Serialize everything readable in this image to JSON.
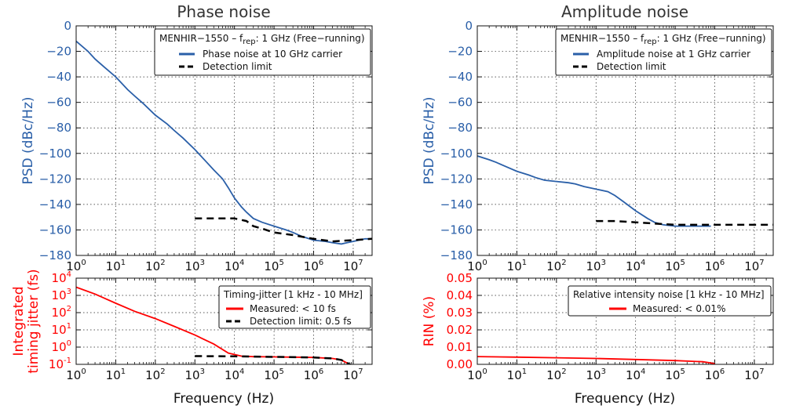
{
  "titles": {
    "left": "Phase noise",
    "right": "Amplitude noise"
  },
  "xlabel": "Frequency (Hz)",
  "colors": {
    "blue": "#2a5fa8",
    "red": "#ff0000",
    "black": "#000000",
    "text": "#111111"
  },
  "legends": {
    "phase": {
      "title_pre": "MENHIR−1550 – f",
      "title_sub": "rep",
      "title_post": ": 1 GHz (Free−running)",
      "item1": "Phase noise at 10 GHz carrier",
      "item2": "Detection limit"
    },
    "amp": {
      "title_pre": "MENHIR−1550 – f",
      "title_sub": "rep",
      "title_post": ": 1 GHz (Free−running)",
      "item1": "Amplitude noise at 1 GHz carrier",
      "item2": "Detection limit"
    },
    "jitter": {
      "title": "Timing-jitter [1 kHz - 10 MHz]",
      "item1": "Measured: < 10 fs",
      "item2": "Detection limit: 0.5 fs"
    },
    "rin": {
      "title": "Relative intensity noise [1 kHz - 10 MHz]",
      "item1": "Measured: < 0.01%"
    }
  },
  "chart_data": [
    {
      "id": "phase",
      "type": "line",
      "ylabel": "PSD (dBc/Hz)",
      "xscale": "log",
      "xlim": [
        1,
        30000000
      ],
      "ylim": [
        -180,
        0
      ],
      "yticks": [
        "0",
        "-20",
        "-40",
        "-60",
        "-80",
        "-100",
        "-120",
        "-140",
        "-160",
        "-180"
      ],
      "yticks_negative_glyph": [
        "0",
        "−20",
        "−40",
        "−60",
        "−80",
        "−100",
        "−120",
        "−140",
        "−160",
        "−180"
      ],
      "xticks": [
        "10^0",
        "10^1",
        "10^2",
        "10^3",
        "10^4",
        "10^5",
        "10^6",
        "10^7"
      ],
      "grid": true,
      "legend": "top-right",
      "series": [
        {
          "name": "Phase noise at 10 GHz carrier",
          "color": "#2a5fa8",
          "x": [
            1,
            2,
            3,
            5,
            10,
            20,
            30,
            50,
            100,
            200,
            300,
            500,
            1000,
            2000,
            3000,
            5000,
            7000,
            10000,
            15000,
            20000,
            30000,
            50000,
            100000,
            200000,
            300000,
            500000,
            1000000,
            2000000,
            3000000,
            5000000,
            7000000,
            10000000,
            20000000,
            30000000
          ],
          "y": [
            -12,
            -20,
            -26,
            -32,
            -40,
            -50,
            -55,
            -61,
            -70,
            -77,
            -82,
            -88,
            -97,
            -107,
            -113,
            -120,
            -127,
            -135,
            -142,
            -146,
            -151,
            -154,
            -157,
            -160,
            -162,
            -165,
            -168,
            -169,
            -170,
            -171,
            -170,
            -169,
            -167,
            -167
          ]
        },
        {
          "name": "Detection limit",
          "color": "#000000",
          "x": [
            1000,
            3000,
            10000,
            20000,
            30000,
            50000,
            100000,
            300000,
            1000000,
            3000000,
            10000000,
            30000000
          ],
          "y": [
            -151,
            -151,
            -151,
            -153,
            -157,
            -159,
            -162,
            -164,
            -167,
            -169,
            -168,
            -167
          ]
        }
      ]
    },
    {
      "id": "jitter",
      "type": "line",
      "ylabel": "Integrated timing jitter (fs)",
      "ylabel_lines": [
        "Integrated",
        "timing jitter (fs)"
      ],
      "xscale": "log",
      "yscale": "log",
      "xlim": [
        1,
        30000000
      ],
      "ylim": [
        0.1,
        10000
      ],
      "yticks": [
        "10^-1",
        "10^0",
        "10^1",
        "10^2",
        "10^3",
        "10^4"
      ],
      "xticks": [
        "10^0",
        "10^1",
        "10^2",
        "10^3",
        "10^4",
        "10^5",
        "10^6",
        "10^7"
      ],
      "grid": true,
      "legend": "top-right",
      "series": [
        {
          "name": "Measured: < 10 fs",
          "color": "#ff0000",
          "x": [
            1,
            3,
            10,
            30,
            100,
            300,
            1000,
            3000,
            7000,
            15000,
            30000,
            100000,
            1000000,
            3000000,
            5000000,
            7000000,
            10000000
          ],
          "y": [
            3000,
            1200,
            350,
            120,
            45,
            16,
            5,
            1.5,
            0.45,
            0.3,
            0.28,
            0.27,
            0.25,
            0.22,
            0.18,
            0.12,
            0.08
          ]
        },
        {
          "name": "Detection limit: 0.5 fs",
          "color": "#000000",
          "x": [
            1000,
            10000,
            100000,
            1000000,
            3000000,
            5000000,
            7000000,
            10000000
          ],
          "y": [
            0.3,
            0.29,
            0.27,
            0.25,
            0.22,
            0.18,
            0.12,
            0.08
          ]
        }
      ]
    },
    {
      "id": "amp",
      "type": "line",
      "ylabel": "PSD (dBc/Hz)",
      "xscale": "log",
      "xlim": [
        1,
        30000000
      ],
      "ylim": [
        -180,
        0
      ],
      "yticks": [
        "0",
        "-20",
        "-40",
        "-60",
        "-80",
        "-100",
        "-120",
        "-140",
        "-160",
        "-180"
      ],
      "yticks_negative_glyph": [
        "0",
        "−20",
        "−40",
        "−60",
        "−80",
        "−100",
        "−120",
        "−140",
        "−160",
        "−180"
      ],
      "xticks": [
        "10^0",
        "10^1",
        "10^2",
        "10^3",
        "10^4",
        "10^5",
        "10^6",
        "10^7"
      ],
      "grid": true,
      "legend": "top-right",
      "series": [
        {
          "name": "Amplitude noise at 1 GHz carrier",
          "color": "#2a5fa8",
          "x": [
            1,
            2,
            3,
            5,
            10,
            20,
            30,
            50,
            100,
            200,
            300,
            500,
            1000,
            2000,
            3000,
            5000,
            10000,
            20000,
            30000,
            50000,
            100000,
            200000,
            500000,
            800000
          ],
          "y": [
            -102,
            -105,
            -107,
            -110,
            -114,
            -117,
            -119,
            -121,
            -122,
            -123,
            -124,
            -126,
            -128,
            -130,
            -133,
            -138,
            -145,
            -151,
            -154,
            -156,
            -157,
            -157,
            -157,
            -157
          ]
        },
        {
          "name": "Detection limit",
          "color": "#000000",
          "x": [
            1000,
            3000,
            10000,
            30000,
            100000,
            300000,
            1000000,
            3000000,
            10000000,
            30000000
          ],
          "y": [
            -153,
            -153,
            -154,
            -155,
            -156,
            -156,
            -156,
            -156,
            -156,
            -156
          ]
        }
      ]
    },
    {
      "id": "rin",
      "type": "line",
      "ylabel": "RIN (%)",
      "xscale": "log",
      "xlim": [
        1,
        30000000
      ],
      "ylim": [
        0,
        0.05
      ],
      "yticks": [
        "0.00",
        "0.01",
        "0.02",
        "0.03",
        "0.04",
        "0.05"
      ],
      "xticks": [
        "10^0",
        "10^1",
        "10^2",
        "10^3",
        "10^4",
        "10^5",
        "10^6",
        "10^7"
      ],
      "grid": true,
      "legend": "top-right",
      "series": [
        {
          "name": "Measured: < 0.01%",
          "color": "#ff0000",
          "x": [
            1,
            10,
            100,
            1000,
            10000,
            100000,
            500000,
            800000,
            1000000
          ],
          "y": [
            0.0045,
            0.0042,
            0.0038,
            0.0034,
            0.0028,
            0.0022,
            0.0015,
            0.0008,
            0.0003
          ]
        }
      ]
    }
  ]
}
